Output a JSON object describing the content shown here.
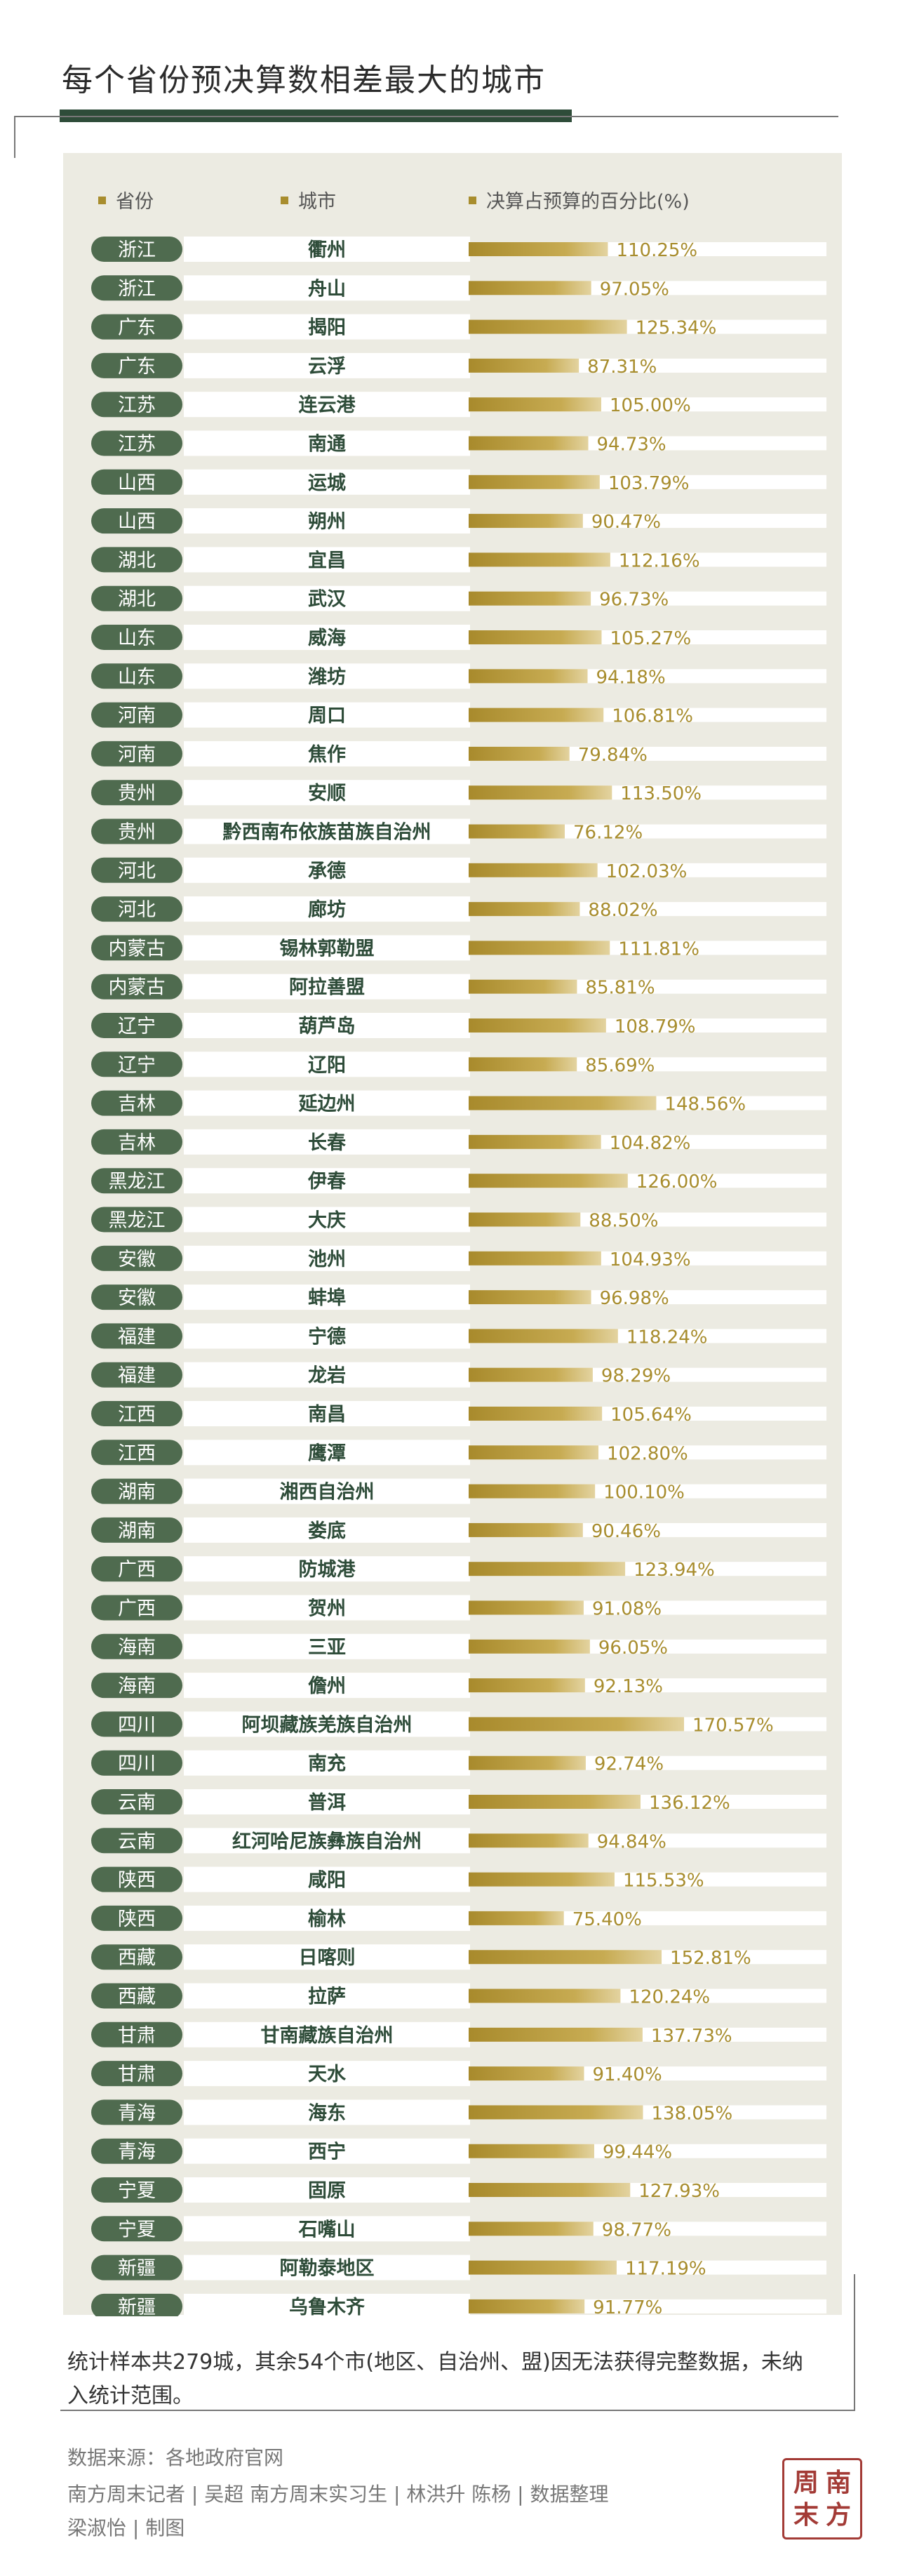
{
  "title": "每个省份预决算数相差最大的城市",
  "headers": {
    "province": "省份",
    "city": "城市",
    "pct": "决算占预算的百分比(%)"
  },
  "colors": {
    "accent": "#a88d2e",
    "pill": "#4f6b4f",
    "title_bar": "#2e4c39",
    "panel": "#ecebe2",
    "city_text": "#2e4c39"
  },
  "chart_data": {
    "type": "bar",
    "title": "每个省份预决算数相差最大的城市",
    "xlabel": "城市",
    "ylabel": "决算占预算的百分比(%)",
    "value_suffix": "%",
    "ylim": [
      0,
      200
    ],
    "rows": [
      {
        "province": "浙江",
        "city": "衢州",
        "value": 110.25
      },
      {
        "province": "浙江",
        "city": "舟山",
        "value": 97.05
      },
      {
        "province": "广东",
        "city": "揭阳",
        "value": 125.34
      },
      {
        "province": "广东",
        "city": "云浮",
        "value": 87.31
      },
      {
        "province": "江苏",
        "city": "连云港",
        "value": 105.0
      },
      {
        "province": "江苏",
        "city": "南通",
        "value": 94.73
      },
      {
        "province": "山西",
        "city": "运城",
        "value": 103.79
      },
      {
        "province": "山西",
        "city": "朔州",
        "value": 90.47
      },
      {
        "province": "湖北",
        "city": "宜昌",
        "value": 112.16
      },
      {
        "province": "湖北",
        "city": "武汉",
        "value": 96.73
      },
      {
        "province": "山东",
        "city": "威海",
        "value": 105.27
      },
      {
        "province": "山东",
        "city": "潍坊",
        "value": 94.18
      },
      {
        "province": "河南",
        "city": "周口",
        "value": 106.81
      },
      {
        "province": "河南",
        "city": "焦作",
        "value": 79.84
      },
      {
        "province": "贵州",
        "city": "安顺",
        "value": 113.5
      },
      {
        "province": "贵州",
        "city": "黔西南布依族苗族自治州",
        "value": 76.12
      },
      {
        "province": "河北",
        "city": "承德",
        "value": 102.03
      },
      {
        "province": "河北",
        "city": "廊坊",
        "value": 88.02
      },
      {
        "province": "内蒙古",
        "city": "锡林郭勒盟",
        "value": 111.81
      },
      {
        "province": "内蒙古",
        "city": "阿拉善盟",
        "value": 85.81
      },
      {
        "province": "辽宁",
        "city": "葫芦岛",
        "value": 108.79
      },
      {
        "province": "辽宁",
        "city": "辽阳",
        "value": 85.69
      },
      {
        "province": "吉林",
        "city": "延边州",
        "value": 148.56
      },
      {
        "province": "吉林",
        "city": "长春",
        "value": 104.82
      },
      {
        "province": "黑龙江",
        "city": "伊春",
        "value": 126.0
      },
      {
        "province": "黑龙江",
        "city": "大庆",
        "value": 88.5
      },
      {
        "province": "安徽",
        "city": "池州",
        "value": 104.93
      },
      {
        "province": "安徽",
        "city": "蚌埠",
        "value": 96.98
      },
      {
        "province": "福建",
        "city": "宁德",
        "value": 118.24
      },
      {
        "province": "福建",
        "city": "龙岩",
        "value": 98.29
      },
      {
        "province": "江西",
        "city": "南昌",
        "value": 105.64
      },
      {
        "province": "江西",
        "city": "鹰潭",
        "value": 102.8
      },
      {
        "province": "湖南",
        "city": "湘西自治州",
        "value": 100.1
      },
      {
        "province": "湖南",
        "city": "娄底",
        "value": 90.46
      },
      {
        "province": "广西",
        "city": "防城港",
        "value": 123.94
      },
      {
        "province": "广西",
        "city": "贺州",
        "value": 91.08
      },
      {
        "province": "海南",
        "city": "三亚",
        "value": 96.05
      },
      {
        "province": "海南",
        "city": "儋州",
        "value": 92.13
      },
      {
        "province": "四川",
        "city": "阿坝藏族羌族自治州",
        "value": 170.57
      },
      {
        "province": "四川",
        "city": "南充",
        "value": 92.74
      },
      {
        "province": "云南",
        "city": "普洱",
        "value": 136.12
      },
      {
        "province": "云南",
        "city": "红河哈尼族彝族自治州",
        "value": 94.84
      },
      {
        "province": "陕西",
        "city": "咸阳",
        "value": 115.53
      },
      {
        "province": "陕西",
        "city": "榆林",
        "value": 75.4
      },
      {
        "province": "西藏",
        "city": "日喀则",
        "value": 152.81
      },
      {
        "province": "西藏",
        "city": "拉萨",
        "value": 120.24
      },
      {
        "province": "甘肃",
        "city": "甘南藏族自治州",
        "value": 137.73
      },
      {
        "province": "甘肃",
        "city": "天水",
        "value": 91.4
      },
      {
        "province": "青海",
        "city": "海东",
        "value": 138.05
      },
      {
        "province": "青海",
        "city": "西宁",
        "value": 99.44
      },
      {
        "province": "宁夏",
        "city": "固原",
        "value": 127.93
      },
      {
        "province": "宁夏",
        "city": "石嘴山",
        "value": 98.77
      },
      {
        "province": "新疆",
        "city": "阿勒泰地区",
        "value": 117.19
      },
      {
        "province": "新疆",
        "city": "乌鲁木齐",
        "value": 91.77
      }
    ]
  },
  "note": "统计样本共279城，其余54个市(地区、自治州、盟)因无法获得完整数据，未纳入统计范围。",
  "footer": {
    "source": "数据来源：各地政府官网",
    "credits1": "南方周末记者 | 吴超  南方周末实习生 | 林洪升 陈杨 | 数据整理",
    "credits2": "梁淑怡 | 制图"
  },
  "stamp": [
    "周",
    "南",
    "末",
    "方"
  ]
}
